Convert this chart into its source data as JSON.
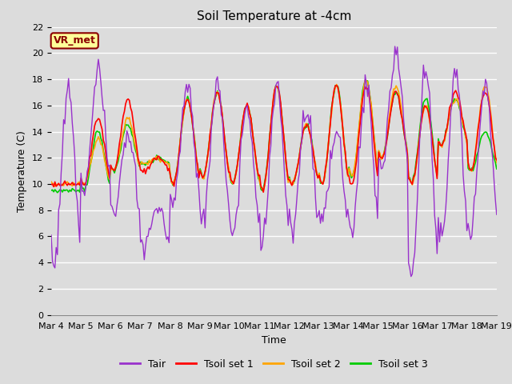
{
  "title": "Soil Temperature at -4cm",
  "xlabel": "Time",
  "ylabel": "Temperature (C)",
  "ylim": [
    0,
    22
  ],
  "yticks": [
    0,
    2,
    4,
    6,
    8,
    10,
    12,
    14,
    16,
    18,
    20,
    22
  ],
  "xtick_labels": [
    "Mar 4",
    "Mar 5",
    "Mar 6",
    "Mar 7",
    "Mar 8",
    "Mar 9",
    "Mar 10",
    "Mar 11",
    "Mar 12",
    "Mar 13",
    "Mar 14",
    "Mar 15",
    "Mar 16",
    "Mar 17",
    "Mar 18",
    "Mar 19"
  ],
  "legend_entries": [
    "Tair",
    "Tsoil set 1",
    "Tsoil set 2",
    "Tsoil set 3"
  ],
  "colors": {
    "Tair": "#9932CC",
    "Tsoil1": "#FF0000",
    "Tsoil2": "#FFA500",
    "Tsoil3": "#00CC00"
  },
  "annotation_text": "VR_met",
  "annotation_color": "#8B0000",
  "fig_bg_color": "#DCDCDC",
  "plot_bg_color": "#DCDCDC",
  "grid_color": "#FFFFFF",
  "title_fontsize": 11,
  "axis_fontsize": 9,
  "tick_fontsize": 8,
  "n_points": 360,
  "n_days": 15
}
